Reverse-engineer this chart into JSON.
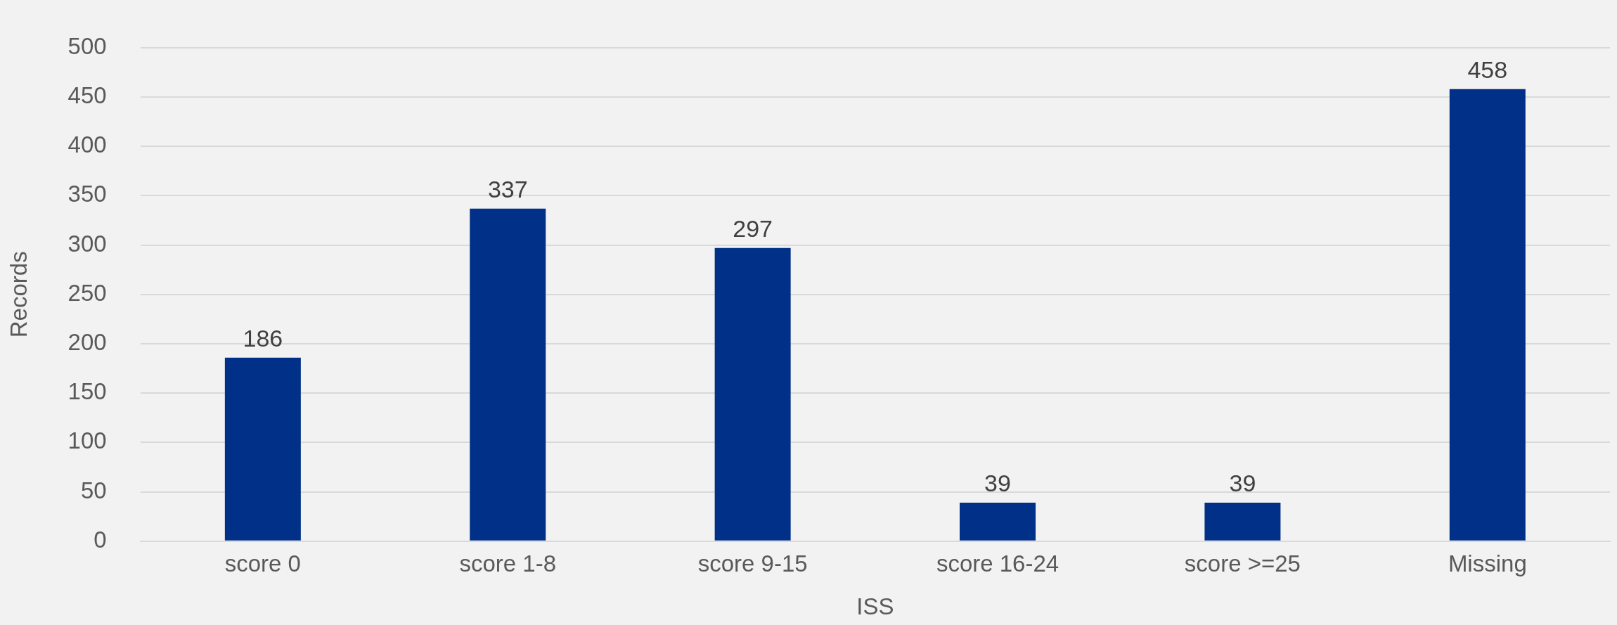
{
  "chart_data": {
    "type": "bar",
    "xlabel": "ISS",
    "ylabel": "Records",
    "categories": [
      "score 0",
      "score 1-8",
      "score 9-15",
      "score 16-24",
      "score >=25",
      "Missing"
    ],
    "values": [
      186,
      337,
      297,
      39,
      39,
      458
    ],
    "color": "#003087",
    "ylim": [
      0,
      500
    ],
    "yticks": [
      0,
      50,
      100,
      150,
      200,
      250,
      300,
      350,
      400,
      450,
      500
    ],
    "grid": "y",
    "legend": false,
    "data_labels": true
  }
}
